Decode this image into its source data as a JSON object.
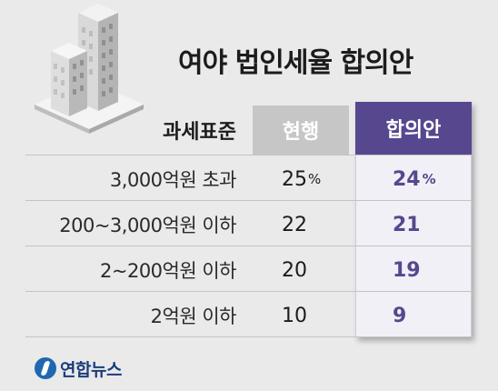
{
  "title": "여야 법인세율 합의안",
  "table": {
    "headers": {
      "label": "과세표준",
      "current": "현행",
      "agreed": "합의안"
    },
    "percent_sign": "%",
    "rows": [
      {
        "label": "3,000억원 초과",
        "current": "25",
        "agreed": "24"
      },
      {
        "label": "200~3,000억원 이하",
        "current": "22",
        "agreed": "21"
      },
      {
        "label": "2~200억원 이하",
        "current": "20",
        "agreed": "19"
      },
      {
        "label": "2억원 이하",
        "current": "10",
        "agreed": "9"
      }
    ]
  },
  "colors": {
    "accent": "#57478e",
    "current_header": "#c6c6c6",
    "background": "#eaeaea"
  },
  "logo": {
    "text": "연합뉴스",
    "icon": "yonhap-logo-icon"
  }
}
